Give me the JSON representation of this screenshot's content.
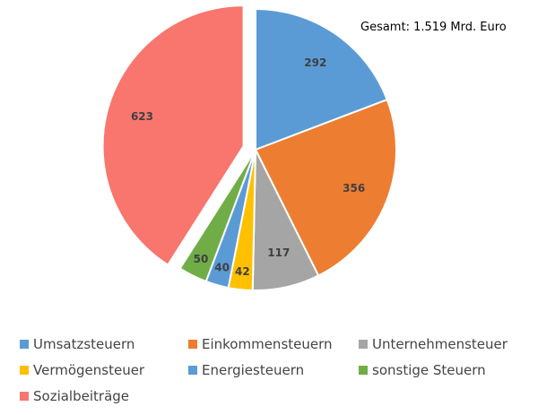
{
  "total_label": "Gesamt: 1.519 Mrd. Euro",
  "chart_data": {
    "type": "pie",
    "slices": [
      {
        "name": "Umsatzsteuern",
        "value": 292,
        "color": "#5B9BD5"
      },
      {
        "name": "Einkommensteuern",
        "value": 356,
        "color": "#ED7D31"
      },
      {
        "name": "Unternehmensteuer",
        "value": 117,
        "color": "#A5A5A5"
      },
      {
        "name": "Vermögensteuer",
        "value": 42,
        "color": "#FFC000"
      },
      {
        "name": "Energiesteuern",
        "value": 40,
        "color": "#5B9BD5"
      },
      {
        "name": "sonstige Steuern",
        "value": 50,
        "color": "#70AD47"
      },
      {
        "name": "Sozialbeiträge",
        "value": 623,
        "color": "#F8766D",
        "exploded": true
      }
    ],
    "legend_position": "bottom"
  }
}
